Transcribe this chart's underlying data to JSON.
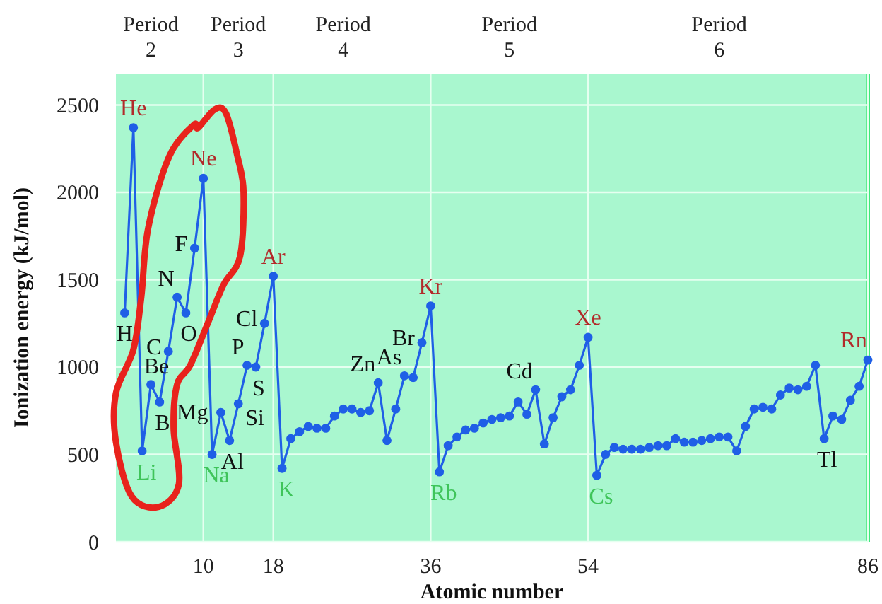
{
  "chart_data": {
    "type": "line",
    "xlabel": "Atomic number",
    "ylabel": "Ionization energy (kJ/mol)",
    "x": [
      1,
      2,
      3,
      4,
      5,
      6,
      7,
      8,
      9,
      10,
      11,
      12,
      13,
      14,
      15,
      16,
      17,
      18,
      19,
      20,
      21,
      22,
      23,
      24,
      25,
      26,
      27,
      28,
      29,
      30,
      31,
      32,
      33,
      34,
      35,
      36,
      37,
      38,
      39,
      40,
      41,
      42,
      43,
      44,
      45,
      46,
      47,
      48,
      49,
      50,
      51,
      52,
      53,
      54,
      55,
      56,
      57,
      58,
      59,
      60,
      61,
      62,
      63,
      64,
      65,
      66,
      67,
      68,
      69,
      70,
      71,
      72,
      73,
      74,
      75,
      76,
      77,
      78,
      79,
      80,
      81,
      82,
      83,
      84,
      85,
      86
    ],
    "series": [
      {
        "color": "#1f5fe6",
        "values": [
          1310,
          2370,
          520,
          900,
          800,
          1090,
          1400,
          1310,
          1680,
          2080,
          500,
          740,
          580,
          790,
          1010,
          1000,
          1250,
          1520,
          420,
          590,
          630,
          660,
          650,
          650,
          720,
          760,
          760,
          740,
          750,
          910,
          580,
          760,
          950,
          940,
          1140,
          1350,
          400,
          550,
          600,
          640,
          650,
          680,
          700,
          710,
          720,
          800,
          730,
          870,
          560,
          710,
          830,
          870,
          1010,
          1170,
          380,
          500,
          540,
          530,
          530,
          530,
          540,
          550,
          550,
          590,
          570,
          570,
          580,
          590,
          600,
          600,
          520,
          660,
          760,
          770,
          760,
          840,
          880,
          870,
          890,
          1010,
          590,
          720,
          700,
          810,
          890,
          1040
        ]
      }
    ],
    "xlim": [
      0,
      86
    ],
    "ylim": [
      0,
      2680
    ],
    "xticks": [
      10,
      18,
      36,
      54,
      86
    ],
    "yticks": [
      0,
      500,
      1000,
      1500,
      2000,
      2500
    ],
    "grid": true,
    "marker": "circle",
    "line_style": "solid",
    "annotations": [
      "Period 2",
      "Period 3",
      "Period 4",
      "Period 5",
      "Period 6",
      {
        "text": "H",
        "x": 1,
        "y": 1310
      },
      {
        "text": "He",
        "x": 2,
        "y": 2370
      },
      {
        "text": "Li",
        "x": 3,
        "y": 520
      },
      {
        "text": "Be",
        "x": 4,
        "y": 900
      },
      {
        "text": "B",
        "x": 5,
        "y": 800
      },
      {
        "text": "C",
        "x": 6,
        "y": 1090
      },
      {
        "text": "N",
        "x": 7,
        "y": 1400
      },
      {
        "text": "O",
        "x": 8,
        "y": 1310
      },
      {
        "text": "F",
        "x": 9,
        "y": 1680
      },
      {
        "text": "Ne",
        "x": 10,
        "y": 2080
      },
      {
        "text": "Na",
        "x": 11,
        "y": 500
      },
      {
        "text": "Mg",
        "x": 12,
        "y": 740
      },
      {
        "text": "Al",
        "x": 13,
        "y": 580
      },
      {
        "text": "Si",
        "x": 14,
        "y": 790
      },
      {
        "text": "P",
        "x": 15,
        "y": 1010
      },
      {
        "text": "S",
        "x": 16,
        "y": 1000
      },
      {
        "text": "Cl",
        "x": 17,
        "y": 1250
      },
      {
        "text": "Ar",
        "x": 18,
        "y": 1520
      },
      {
        "text": "K",
        "x": 19,
        "y": 420
      },
      {
        "text": "Zn",
        "x": 30,
        "y": 910
      },
      {
        "text": "As",
        "x": 33,
        "y": 950
      },
      {
        "text": "Br",
        "x": 35,
        "y": 1140
      },
      {
        "text": "Kr",
        "x": 36,
        "y": 1350
      },
      {
        "text": "Rb",
        "x": 37,
        "y": 400
      },
      {
        "text": "Cd",
        "x": 48,
        "y": 870
      },
      {
        "text": "Xe",
        "x": 54,
        "y": 1170
      },
      {
        "text": "Cs",
        "x": 55,
        "y": 380
      },
      {
        "text": "Tl",
        "x": 81,
        "y": 590
      },
      {
        "text": "Rn",
        "x": 86,
        "y": 1040
      }
    ]
  }
}
